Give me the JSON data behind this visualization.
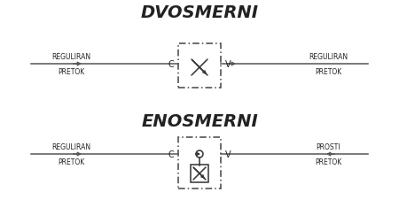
{
  "bg_color": "#ffffff",
  "title1": "DVOSMERNI",
  "title2": "ENOSMERNI",
  "title_fontsize": 14,
  "label_fontsize": 5.5,
  "port_fontsize": 7,
  "text_color": "#222222",
  "line_color": "#555555",
  "box_color": "#444444",
  "symbol_color": "#333333",
  "left_label1": [
    "REGULIRAN",
    "PRETOK"
  ],
  "right_label1": [
    "REGULIRAN",
    "PRETOK"
  ],
  "left_label2": [
    "REGULIRAN",
    "PRETOK"
  ],
  "right_label2": [
    "PROSTI",
    "PRETOK"
  ],
  "port_left": "C",
  "port_right": "V",
  "fig_w": 4.5,
  "fig_h": 2.53,
  "dpi": 100
}
